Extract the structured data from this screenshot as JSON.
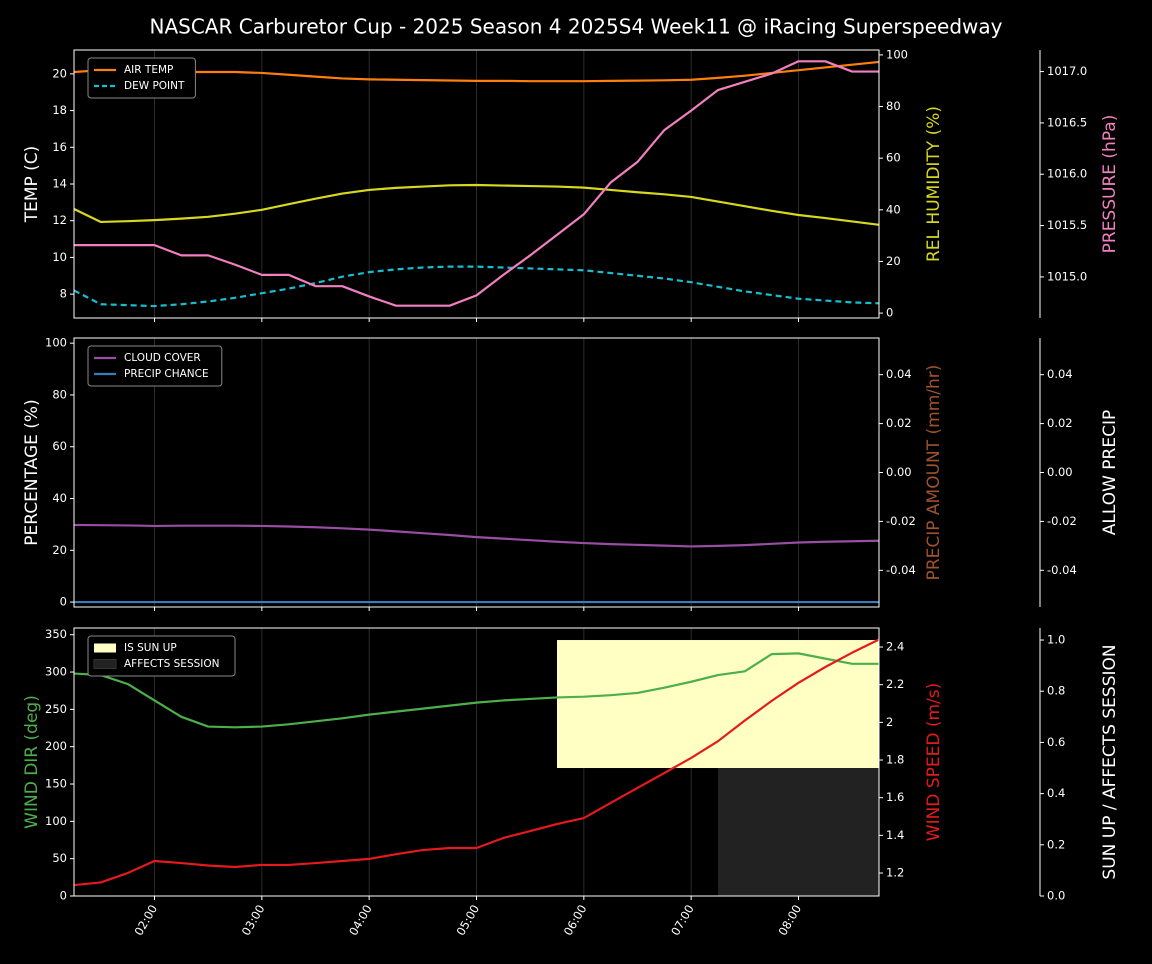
{
  "chart_data": {
    "type": "line",
    "title": "NASCAR Carburetor Cup - 2025 Season 4 2025S4 Week11 @ iRacing Superspeedway",
    "x": [
      "01:15",
      "01:30",
      "01:45",
      "02:00",
      "02:15",
      "02:30",
      "02:45",
      "03:00",
      "03:15",
      "03:30",
      "03:45",
      "04:00",
      "04:15",
      "04:30",
      "04:45",
      "05:00",
      "05:15",
      "05:30",
      "05:45",
      "06:00",
      "06:15",
      "06:30",
      "06:45",
      "07:00",
      "07:15",
      "07:30",
      "07:45",
      "08:00",
      "08:15",
      "08:30",
      "08:45"
    ],
    "xlim": [
      "01:15",
      "08:45"
    ],
    "xticks": [
      "02:00",
      "03:00",
      "04:00",
      "05:00",
      "06:00",
      "07:00",
      "08:00"
    ],
    "grid": true,
    "panels": [
      {
        "legend": "upper left",
        "ylabel": "TEMP (C)",
        "ylabel_color": "#ffffff",
        "ylim": [
          6.7,
          21.3
        ],
        "yticks": [
          8,
          10,
          12,
          14,
          16,
          18,
          20
        ],
        "y2label": "REL HUMIDITY (%)",
        "y2label_color": "#d8d820",
        "y2lim": [
          -1.9,
          101.9
        ],
        "y2ticks": [
          0,
          20,
          40,
          60,
          80,
          100
        ],
        "y3label": "PRESSURE (hPa)",
        "y3label_color": "#f27fbf",
        "y3lim": [
          1014.6,
          1017.21
        ],
        "y3ticks": [
          {
            "value": 1015,
            "label": "1015.0"
          },
          1015.5,
          {
            "value": 1016,
            "label": "1016.0"
          },
          1016.5,
          {
            "value": 1017,
            "label": "1017.0"
          }
        ],
        "series": [
          {
            "name": "AIR TEMP",
            "type": "line",
            "color": "#ff7f0e",
            "axis": "y",
            "dashed": false,
            "values": [
              20.1,
              20.2,
              20.2,
              20.2,
              20.1,
              20.1,
              20.1,
              20.05,
              19.95,
              19.85,
              19.75,
              19.7,
              19.68,
              19.66,
              19.64,
              19.62,
              19.62,
              19.6,
              19.6,
              19.6,
              19.62,
              19.63,
              19.65,
              19.68,
              19.78,
              19.9,
              20.05,
              20.2,
              20.35,
              20.5,
              20.65
            ]
          },
          {
            "name": "DEW POINT",
            "type": "line",
            "color": "#17becf",
            "axis": "y",
            "dashed": true,
            "values": [
              8.2,
              7.45,
              7.4,
              7.35,
              7.45,
              7.6,
              7.8,
              8.05,
              8.3,
              8.6,
              8.95,
              9.2,
              9.35,
              9.45,
              9.5,
              9.5,
              9.45,
              9.4,
              9.35,
              9.3,
              9.15,
              9.0,
              8.85,
              8.65,
              8.4,
              8.15,
              7.95,
              7.75,
              7.65,
              7.55,
              7.5
            ]
          },
          {
            "type": "line",
            "color": "#d8d820",
            "axis": "y2",
            "dashed": false,
            "values": [
              40.3,
              35.3,
              35.6,
              36,
              36.6,
              37.3,
              38.5,
              40,
              42.2,
              44.3,
              46.3,
              47.7,
              48.5,
              49,
              49.5,
              49.6,
              49.4,
              49.2,
              49,
              48.6,
              47.7,
              46.8,
              46,
              45,
              43.2,
              41.4,
              39.6,
              38,
              36.8,
              35.5,
              34.2
            ]
          },
          {
            "type": "line",
            "color": "#f27fbf",
            "axis": "y3",
            "dashed": false,
            "values": [
              1015.31,
              1015.31,
              1015.31,
              1015.31,
              1015.21,
              1015.21,
              1015.12,
              1015.02,
              1015.02,
              1014.91,
              1014.91,
              1014.81,
              1014.72,
              1014.72,
              1014.72,
              1014.82,
              1015.02,
              1015.21,
              1015.41,
              1015.61,
              1015.92,
              1016.12,
              1016.43,
              1016.62,
              1016.82,
              1016.9,
              1016.98,
              1017.1,
              1017.1,
              1017.0,
              1017.0
            ]
          }
        ]
      },
      {
        "legend": "upper left",
        "ylabel": "PERCENTAGE (%)",
        "ylabel_color": "#ffffff",
        "ylim": [
          -1.9,
          102
        ],
        "yticks": [
          0,
          20,
          40,
          60,
          80,
          100
        ],
        "y2label": "PRECIP AMOUNT (mm/hr)",
        "y2label_color": "#a0522d",
        "y2lim": [
          -0.055,
          0.055
        ],
        "y2ticks": [
          -0.04,
          -0.02,
          {
            "value": 0,
            "label": "0.00"
          },
          0.02,
          0.04
        ],
        "y3label": "ALLOW PRECIP",
        "y3label_color": "#ffffff",
        "y3lim": [
          -0.055,
          0.055
        ],
        "y3ticks": [
          -0.04,
          -0.02,
          {
            "value": 0,
            "label": "0.00"
          },
          0.02,
          0.04
        ],
        "series": [
          {
            "name": "CLOUD COVER",
            "type": "line",
            "color": "#984ea3",
            "axis": "y",
            "dashed": false,
            "values": [
              29.8,
              29.7,
              29.6,
              29.4,
              29.5,
              29.5,
              29.5,
              29.4,
              29.2,
              28.9,
              28.5,
              28.0,
              27.3,
              26.6,
              25.9,
              25.1,
              24.5,
              23.9,
              23.3,
              22.8,
              22.4,
              22.1,
              21.8,
              21.5,
              21.7,
              22.0,
              22.5,
              23.0,
              23.3,
              23.5,
              23.7
            ]
          },
          {
            "name": "PRECIP CHANCE",
            "type": "line",
            "color": "#377eb8",
            "axis": "y",
            "dashed": false,
            "values": [
              0,
              0,
              0,
              0,
              0,
              0,
              0,
              0,
              0,
              0,
              0,
              0,
              0,
              0,
              0,
              0,
              0,
              0,
              0,
              0,
              0,
              0,
              0,
              0,
              0,
              0,
              0,
              0,
              0,
              0,
              0
            ]
          }
        ]
      },
      {
        "legend": "upper left",
        "ylabel": "WIND DIR (deg)",
        "ylabel_color": "#4daf4a",
        "ylim": [
          0,
          359
        ],
        "yticks": [
          0,
          50,
          100,
          150,
          200,
          250,
          300,
          350
        ],
        "y2label": "WIND SPEED (m/s)",
        "y2label_color": "#e41a1c",
        "y2lim": [
          1.078,
          2.501
        ],
        "y2ticks": [
          1.2,
          1.4,
          1.6,
          1.8,
          2.0,
          2.2,
          2.4
        ],
        "y3label": "SUN UP / AFFECTS SESSION",
        "y3label_color": "#ffffff",
        "y3lim": [
          0,
          1.047
        ],
        "y3ticks": [
          {
            "value": 0,
            "label": "0.0"
          },
          0.2,
          0.4,
          0.6,
          0.8,
          {
            "value": 1,
            "label": "1.0"
          }
        ],
        "series": [
          {
            "name": "IS SUN UP",
            "type": "band",
            "color": "#ffffc4",
            "axis": "y3",
            "band": [
              0.5,
              1
            ],
            "values": [
              0,
              0,
              0,
              0,
              0,
              0,
              0,
              0,
              0,
              0,
              0,
              0,
              0,
              0,
              0,
              0,
              0,
              0,
              1,
              1,
              1,
              1,
              1,
              1,
              1,
              1,
              1,
              1,
              1,
              1,
              1
            ]
          },
          {
            "name": "AFFECTS SESSION",
            "type": "band",
            "color": "#222222",
            "axis": "y3",
            "band": [
              0,
              0.5
            ],
            "values": [
              0,
              0,
              0,
              0,
              0,
              0,
              0,
              0,
              0,
              0,
              0,
              0,
              0,
              0,
              0,
              0,
              0,
              0,
              0,
              0,
              0,
              0,
              0,
              0,
              1,
              1,
              1,
              1,
              1,
              1,
              1
            ]
          },
          {
            "type": "line",
            "color": "#4daf4a",
            "axis": "y",
            "dashed": false,
            "values": [
              298,
              296,
              284,
              262,
              240,
              227,
              226,
              227,
              230,
              234,
              238,
              243,
              247,
              251,
              255,
              259,
              262,
              264,
              266,
              267,
              269,
              272,
              279,
              287,
              296,
              301,
              324,
              325,
              318,
              311,
              311
            ]
          },
          {
            "type": "line",
            "color": "#e41a1c",
            "axis": "y2",
            "dashed": false,
            "values": [
              1.136,
              1.15,
              1.2,
              1.264,
              1.253,
              1.24,
              1.232,
              1.243,
              1.243,
              1.253,
              1.264,
              1.275,
              1.3,
              1.322,
              1.333,
              1.333,
              1.386,
              1.423,
              1.46,
              1.492,
              1.572,
              1.652,
              1.731,
              1.811,
              1.9,
              2.01,
              2.114,
              2.21,
              2.294,
              2.37,
              2.44
            ]
          }
        ]
      }
    ]
  }
}
